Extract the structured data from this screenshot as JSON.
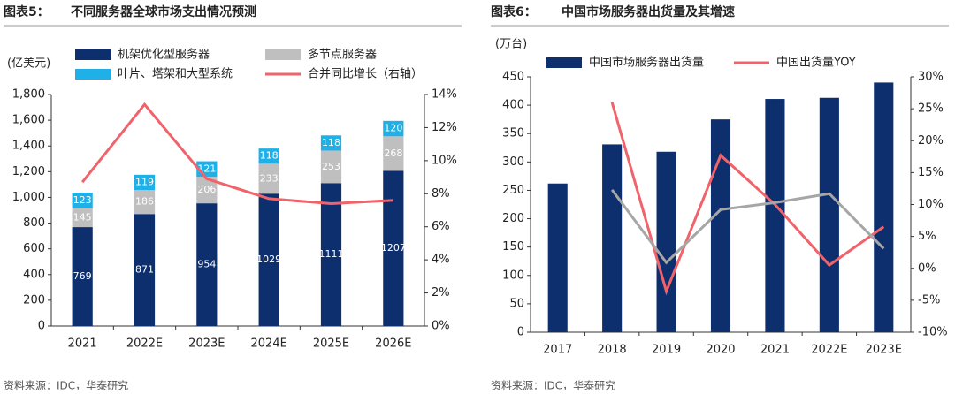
{
  "chart_data": [
    {
      "type": "bar",
      "figure_label": "图表5：",
      "title": "不同服务器全球市场支出情况预测",
      "y_label": "(亿美元)",
      "categories": [
        "2021",
        "2022E",
        "2023E",
        "2024E",
        "2025E",
        "2026E"
      ],
      "stacked": true,
      "data_labels": true,
      "series": [
        {
          "name": "机架优化型服务器",
          "color": "#0e2f6e",
          "values": [
            769,
            871,
            954,
            1029,
            1111,
            1207
          ]
        },
        {
          "name": "多节点服务器",
          "color": "#bfbfbf",
          "values": [
            145,
            186,
            206,
            233,
            253,
            268
          ]
        },
        {
          "name": "叶片、塔架和大型系统",
          "color": "#1eb0e6",
          "values": [
            123,
            119,
            121,
            118,
            118,
            120
          ]
        },
        {
          "name": "合并同比增长（右轴）",
          "type": "line",
          "axis": "y2",
          "color": "#f0636a",
          "values": [
            8.7,
            13.4,
            8.9,
            7.7,
            7.4,
            7.6
          ]
        }
      ],
      "ylim": [
        0,
        1800
      ],
      "yticks": [
        0,
        200,
        400,
        600,
        800,
        {
          "value": 1000,
          "label": "1,000"
        },
        {
          "value": 1200,
          "label": "1,200"
        },
        {
          "value": 1400,
          "label": "1,400"
        },
        {
          "value": 1600,
          "label": "1,600"
        },
        {
          "value": 1800,
          "label": "1,800"
        }
      ],
      "y2lim": [
        0,
        14
      ],
      "y2ticks": [
        {
          "value": 0,
          "label": "0%"
        },
        {
          "value": 2,
          "label": "2%"
        },
        {
          "value": 4,
          "label": "4%"
        },
        {
          "value": 6,
          "label": "6%"
        },
        {
          "value": 8,
          "label": "8%"
        },
        {
          "value": 10,
          "label": "10%"
        },
        {
          "value": 12,
          "label": "12%"
        },
        {
          "value": 14,
          "label": "14%"
        }
      ],
      "source": "资料来源：IDC，华泰研究"
    },
    {
      "type": "bar",
      "figure_label": "图表6：",
      "title": "中国市场服务器出货量及其增速",
      "y_label": "(万台)",
      "categories": [
        "2017",
        "2018",
        "2019",
        "2020",
        "2021",
        "2022E",
        "2023E"
      ],
      "stacked": false,
      "data_labels": false,
      "series": [
        {
          "name": "中国市场服务器出货量",
          "color": "#0e2f6e",
          "values": [
            262,
            331,
            318,
            375,
            411,
            413,
            440
          ]
        },
        {
          "name": "中国出货量YOY",
          "type": "line",
          "axis": "y2",
          "color": "#f0636a",
          "values": [
            null,
            26,
            -3.6,
            17.7,
            10,
            0.5,
            6.5
          ]
        },
        {
          "type": "line",
          "axis": "y2",
          "color": "#a6a6a6",
          "values": [
            null,
            12.3,
            0.9,
            9.2,
            10.3,
            11.7,
            3.1
          ]
        }
      ],
      "ylim": [
        0,
        450
      ],
      "yticks": [
        0,
        50,
        100,
        150,
        200,
        250,
        300,
        350,
        400,
        450
      ],
      "y2lim": [
        -10,
        30
      ],
      "y2ticks": [
        {
          "value": -10,
          "label": "-10%"
        },
        {
          "value": -5,
          "label": "-5%"
        },
        {
          "value": 0,
          "label": "0%"
        },
        {
          "value": 5,
          "label": "5%"
        },
        {
          "value": 10,
          "label": "10%"
        },
        {
          "value": 15,
          "label": "15%"
        },
        {
          "value": 20,
          "label": "20%"
        },
        {
          "value": 25,
          "label": "25%"
        },
        {
          "value": 30,
          "label": "30%"
        }
      ],
      "source": "资料来源：IDC，华泰研究"
    }
  ]
}
